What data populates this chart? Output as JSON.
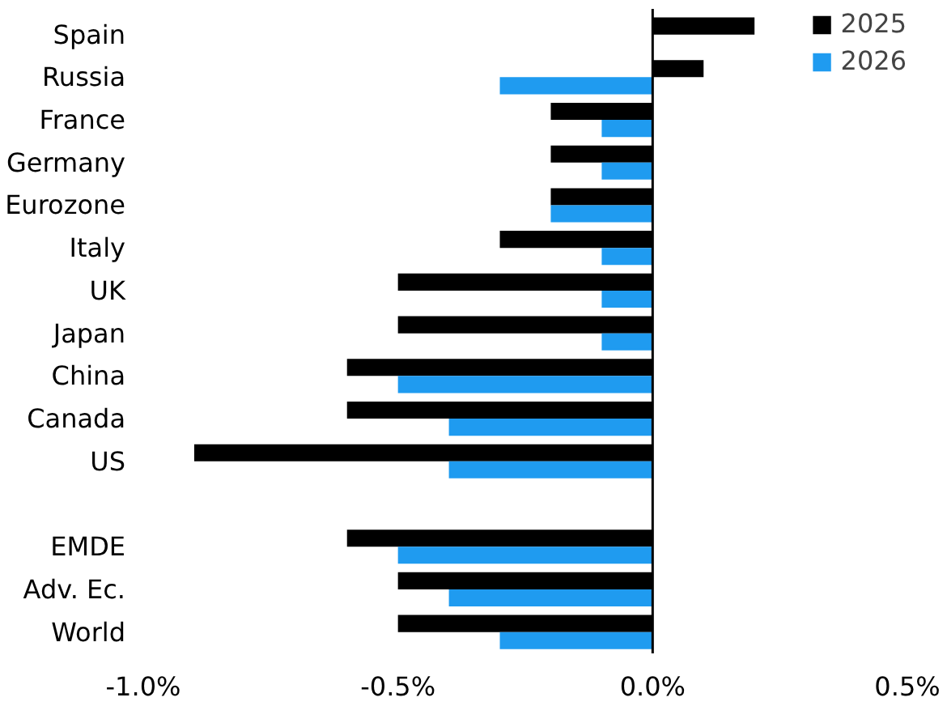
{
  "chart_data": {
    "type": "bar",
    "orientation": "horizontal",
    "categories": [
      "Spain",
      "Russia",
      "France",
      "Germany",
      "Eurozone",
      "Italy",
      "UK",
      "Japan",
      "China",
      "Canada",
      "US",
      null,
      "EMDE",
      "Adv. Ec.",
      "World"
    ],
    "series": [
      {
        "name": "2025",
        "color": "#000000",
        "values": [
          0.2,
          0.1,
          -0.2,
          -0.2,
          -0.2,
          -0.3,
          -0.5,
          -0.5,
          -0.6,
          -0.6,
          -0.9,
          null,
          -0.6,
          -0.5,
          -0.5
        ]
      },
      {
        "name": "2026",
        "color": "#1f9bf0",
        "values": [
          null,
          -0.3,
          -0.1,
          -0.1,
          -0.2,
          -0.1,
          -0.1,
          -0.1,
          -0.5,
          -0.4,
          -0.4,
          null,
          -0.5,
          -0.4,
          -0.3
        ]
      }
    ],
    "xlim": [
      -1.0,
      0.5
    ],
    "xticks": [
      {
        "value": -1.0,
        "label": "-1.0%"
      },
      {
        "value": -0.5,
        "label": "-0.5%"
      },
      {
        "value": 0.0,
        "label": "0.0%"
      },
      {
        "value": 0.5,
        "label": "0.5%"
      }
    ],
    "ref_lines": [
      {
        "axis": "x",
        "value": 0,
        "color": "#000000"
      }
    ],
    "grid": false,
    "legend": "top right"
  }
}
